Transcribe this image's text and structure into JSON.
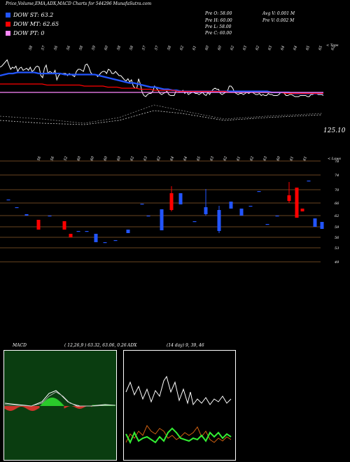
{
  "header": {
    "title": "Price,Volume,EMA,ADX,MACD Charts for 544296 MunafaSutra.com"
  },
  "legend": [
    {
      "label": "DOW ST: 63.2",
      "color": "#2255ff"
    },
    {
      "label": "DOW MT: 62.65",
      "color": "#ff0000"
    },
    {
      "label": "DOW PT: 0",
      "color": "#ff88ff"
    }
  ],
  "stats": {
    "open": "Pre O: 58.00",
    "high": "Pre H: 60.00",
    "low": "Pre L: 58.00",
    "close": "Pre C: 60.00",
    "avg_volume": "Avg V: 0.001 M",
    "pre_volume": "Pre V: 0.002 M"
  },
  "labels": {
    "price_corner": "< Tops",
    "lows_corner": "< Lows",
    "price_value": "125.10",
    "macd_title": "MACD",
    "macd_params": "( 12,26,9 ) 63.32, 63.06, 0.26",
    "adx_title": "ADX",
    "adx_params": "(14 day) 9, 39, 46"
  },
  "chart_data": [
    {
      "type": "line",
      "name": "price-ema-panel",
      "x_tick_labels_top": [
        "58",
        "57",
        "56",
        "56",
        "58",
        "59",
        "60",
        "58",
        "58",
        "57",
        "57",
        "58",
        "62",
        "61",
        "60",
        "60",
        "62",
        "63",
        "62",
        "63",
        "64",
        "64",
        "65",
        "65",
        "62"
      ],
      "x_tick_labels_mid": [
        "56",
        "56",
        "52",
        "60",
        "60",
        "60",
        "60",
        "62",
        "63",
        "62",
        "64",
        "64",
        "65",
        "63",
        "62",
        "61",
        "62",
        "63",
        "60",
        "61",
        "61"
      ],
      "price_value_label": "125.10",
      "series": [
        {
          "color": "#ffffff",
          "values": [
            88,
            89,
            91,
            93,
            95,
            90,
            86,
            88,
            87,
            89,
            84,
            87,
            88,
            85,
            86,
            87,
            85,
            88,
            84,
            85,
            88,
            89,
            88,
            80,
            78,
            87,
            90,
            82,
            84,
            83,
            82,
            85,
            76,
            80,
            82,
            82,
            82,
            82,
            80,
            82,
            81,
            80,
            79,
            84,
            86,
            86,
            85,
            84,
            90,
            91,
            88,
            83,
            81,
            81,
            81,
            79,
            81,
            83,
            84,
            84,
            82,
            86,
            85,
            82,
            82,
            84,
            82,
            80,
            80,
            78,
            76,
            75,
            77,
            74,
            76,
            70,
            68,
            68,
            77,
            72,
            64,
            61,
            60,
            62,
            63,
            63,
            65,
            70,
            68,
            66,
            63,
            62,
            63,
            64,
            65,
            62,
            61,
            61,
            61,
            65,
            66,
            64,
            65,
            66,
            63,
            65,
            62,
            63,
            64,
            64,
            63,
            63,
            62,
            63,
            64,
            62,
            61,
            64,
            62,
            65,
            67,
            68,
            67,
            67,
            63,
            62,
            63,
            64,
            65,
            70,
            70,
            68,
            64,
            63,
            62,
            63,
            63,
            62,
            63,
            64,
            63,
            64,
            64,
            63,
            62,
            62,
            63,
            61,
            62,
            61,
            61,
            63,
            62,
            62,
            61,
            61,
            61,
            62,
            64,
            64,
            63,
            61,
            61,
            62,
            62,
            61,
            60,
            60,
            60,
            61,
            61,
            61,
            61,
            60,
            60,
            62,
            62,
            63,
            63,
            62,
            62,
            62,
            61
          ]
        },
        {
          "color": "#2255ff",
          "values": [
            80,
            81,
            82,
            82,
            83,
            83,
            83,
            83,
            83,
            82,
            82,
            82,
            82,
            82,
            82,
            81,
            81,
            81,
            81,
            81,
            81,
            81,
            81,
            80,
            79,
            78,
            77,
            76,
            75,
            74,
            73,
            73,
            72,
            71,
            70,
            69,
            69,
            68,
            67,
            67,
            66,
            66,
            65,
            65,
            65,
            65,
            65,
            65,
            65,
            65,
            65,
            65,
            65,
            65,
            65,
            65,
            65,
            65,
            65,
            65,
            65,
            65,
            65,
            64,
            64,
            64,
            64,
            64,
            63,
            63,
            63,
            63,
            63,
            63,
            63,
            63
          ]
        },
        {
          "color": "#ff0000",
          "values": [
            72,
            72,
            72,
            72,
            72,
            72,
            72,
            72,
            72,
            72,
            71,
            71,
            71,
            71,
            71,
            71,
            71,
            71,
            70,
            70,
            70,
            70,
            70,
            69,
            69,
            69,
            68,
            68,
            68,
            68,
            67,
            67,
            67,
            66,
            66,
            66,
            66,
            66,
            65,
            65,
            65,
            65,
            65,
            65,
            65,
            65,
            65,
            65,
            65,
            64,
            64,
            64,
            64,
            64,
            64,
            64,
            64,
            64,
            64,
            64,
            64,
            63,
            63,
            63,
            63,
            63,
            63,
            63,
            63,
            63
          ]
        },
        {
          "color": "#ff88ff",
          "values": [
            64,
            64,
            64,
            64,
            64,
            64,
            64,
            64,
            64,
            64,
            64,
            64,
            64,
            64,
            64,
            64,
            64,
            64,
            64,
            64,
            64,
            64,
            64,
            64,
            64,
            64,
            64,
            64,
            64,
            64
          ]
        }
      ]
    },
    {
      "type": "bar",
      "name": "candles-panel",
      "right_ticks": [
        "78",
        "74",
        "70",
        "66",
        "62",
        "59",
        "56",
        "53",
        "49"
      ],
      "lows_corner": "< Lows"
    },
    {
      "type": "line",
      "name": "macd-panel",
      "title": "MACD",
      "params": "( 12,26,9 ) 63.32, 63.06, 0.26"
    },
    {
      "type": "line",
      "name": "adx-panel",
      "title": "ADX",
      "params": "(14 day) 9, 39, 46"
    }
  ]
}
